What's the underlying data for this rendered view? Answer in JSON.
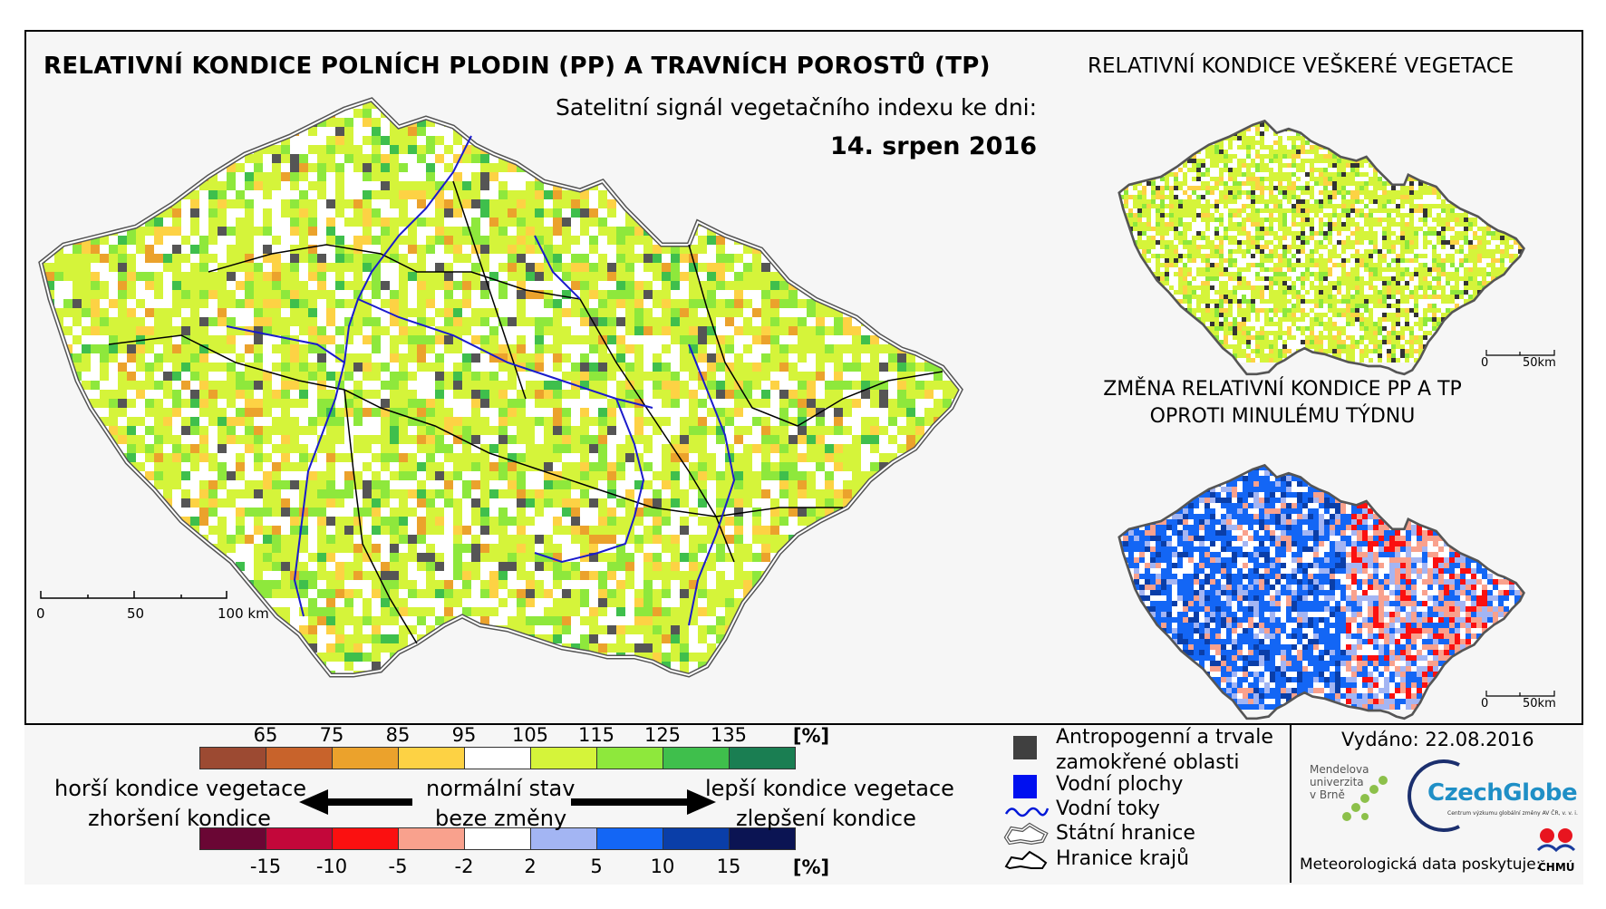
{
  "header": {
    "title": "RELATIVNÍ KONDICE POLNÍCH PLODIN (PP) A TRAVNÍCH POROSTŮ (TP)",
    "subtitle": "Satelitní signál vegetačního indexu ke dni:",
    "date": "14. srpen 2016"
  },
  "inset_top": {
    "title": "RELATIVNÍ KONDICE VEŠKERÉ VEGETACE",
    "scale_labels": [
      "0",
      "50km"
    ]
  },
  "inset_bottom": {
    "title_line1": "ZMĚNA RELATIVNÍ KONDICE PP A TP",
    "title_line2": "OPROTI MINULÉMU TÝDNU",
    "scale_labels": [
      "0",
      "50km"
    ]
  },
  "main_map": {
    "scale_labels": [
      "0",
      "50",
      "100 km"
    ]
  },
  "condition_legend": {
    "ticks": [
      "65",
      "75",
      "85",
      "95",
      "105",
      "115",
      "125",
      "135"
    ],
    "unit": "[%]",
    "colors": [
      "#9c4a32",
      "#c8632b",
      "#eba22c",
      "#fdd244",
      "#ffffff",
      "#d5f43a",
      "#8ee83c",
      "#3fbf4c",
      "#1a7e52"
    ]
  },
  "change_legend": {
    "ticks": [
      "-15",
      "-10",
      "-5",
      "-2",
      "2",
      "5",
      "10",
      "15"
    ],
    "unit": "[%]",
    "colors": [
      "#6a0634",
      "#c3073a",
      "#fb1010",
      "#f9a18d",
      "#ffffff",
      "#a3b5f3",
      "#1366f5",
      "#0a3ea8",
      "#0b1453"
    ]
  },
  "arrows": {
    "worse_vegetation": "horší kondice vegetace",
    "worse_change": "zhoršení kondice",
    "normal_state": "normální stav",
    "no_change": "beze změny",
    "better_vegetation": "lepší kondice vegetace",
    "better_change": "zlepšení kondice"
  },
  "symbol_legend": {
    "items": [
      {
        "label": "Antropogenní a trvale\nzamokřené oblasti",
        "color": "#404040"
      },
      {
        "label": "Vodní plochy",
        "color": "#0010f0"
      },
      {
        "label": "Vodní toky",
        "color": "#0018d8"
      },
      {
        "label": "Státní hranice",
        "color": "#606060"
      },
      {
        "label": "Hranice krajů",
        "color": "#000000"
      }
    ],
    "anthropogenic_line1": "Antropogenní a trvale",
    "anthropogenic_line2": "zamokřené oblasti",
    "water_areas": "Vodní plochy",
    "water_streams": "Vodní toky",
    "state_border": "Státní hranice",
    "region_border": "Hranice krajů"
  },
  "issue": {
    "issued": "Vydáno: 22.08.2016",
    "mendel_line1": "Mendelova",
    "mendel_line2": "univerzita",
    "mendel_line3": "v Brně",
    "czechglobe": "CzechGlobe",
    "czechglobe_sub": "Centrum výzkumu globální změny AV ČR, v. v. i.",
    "meteo": "Meteorologická data poskytuje:",
    "chmu": "ČHMÚ"
  },
  "colors": {
    "frame_bg": "#f6f6f6",
    "river": "#1a1acc",
    "urban": "#555555"
  }
}
